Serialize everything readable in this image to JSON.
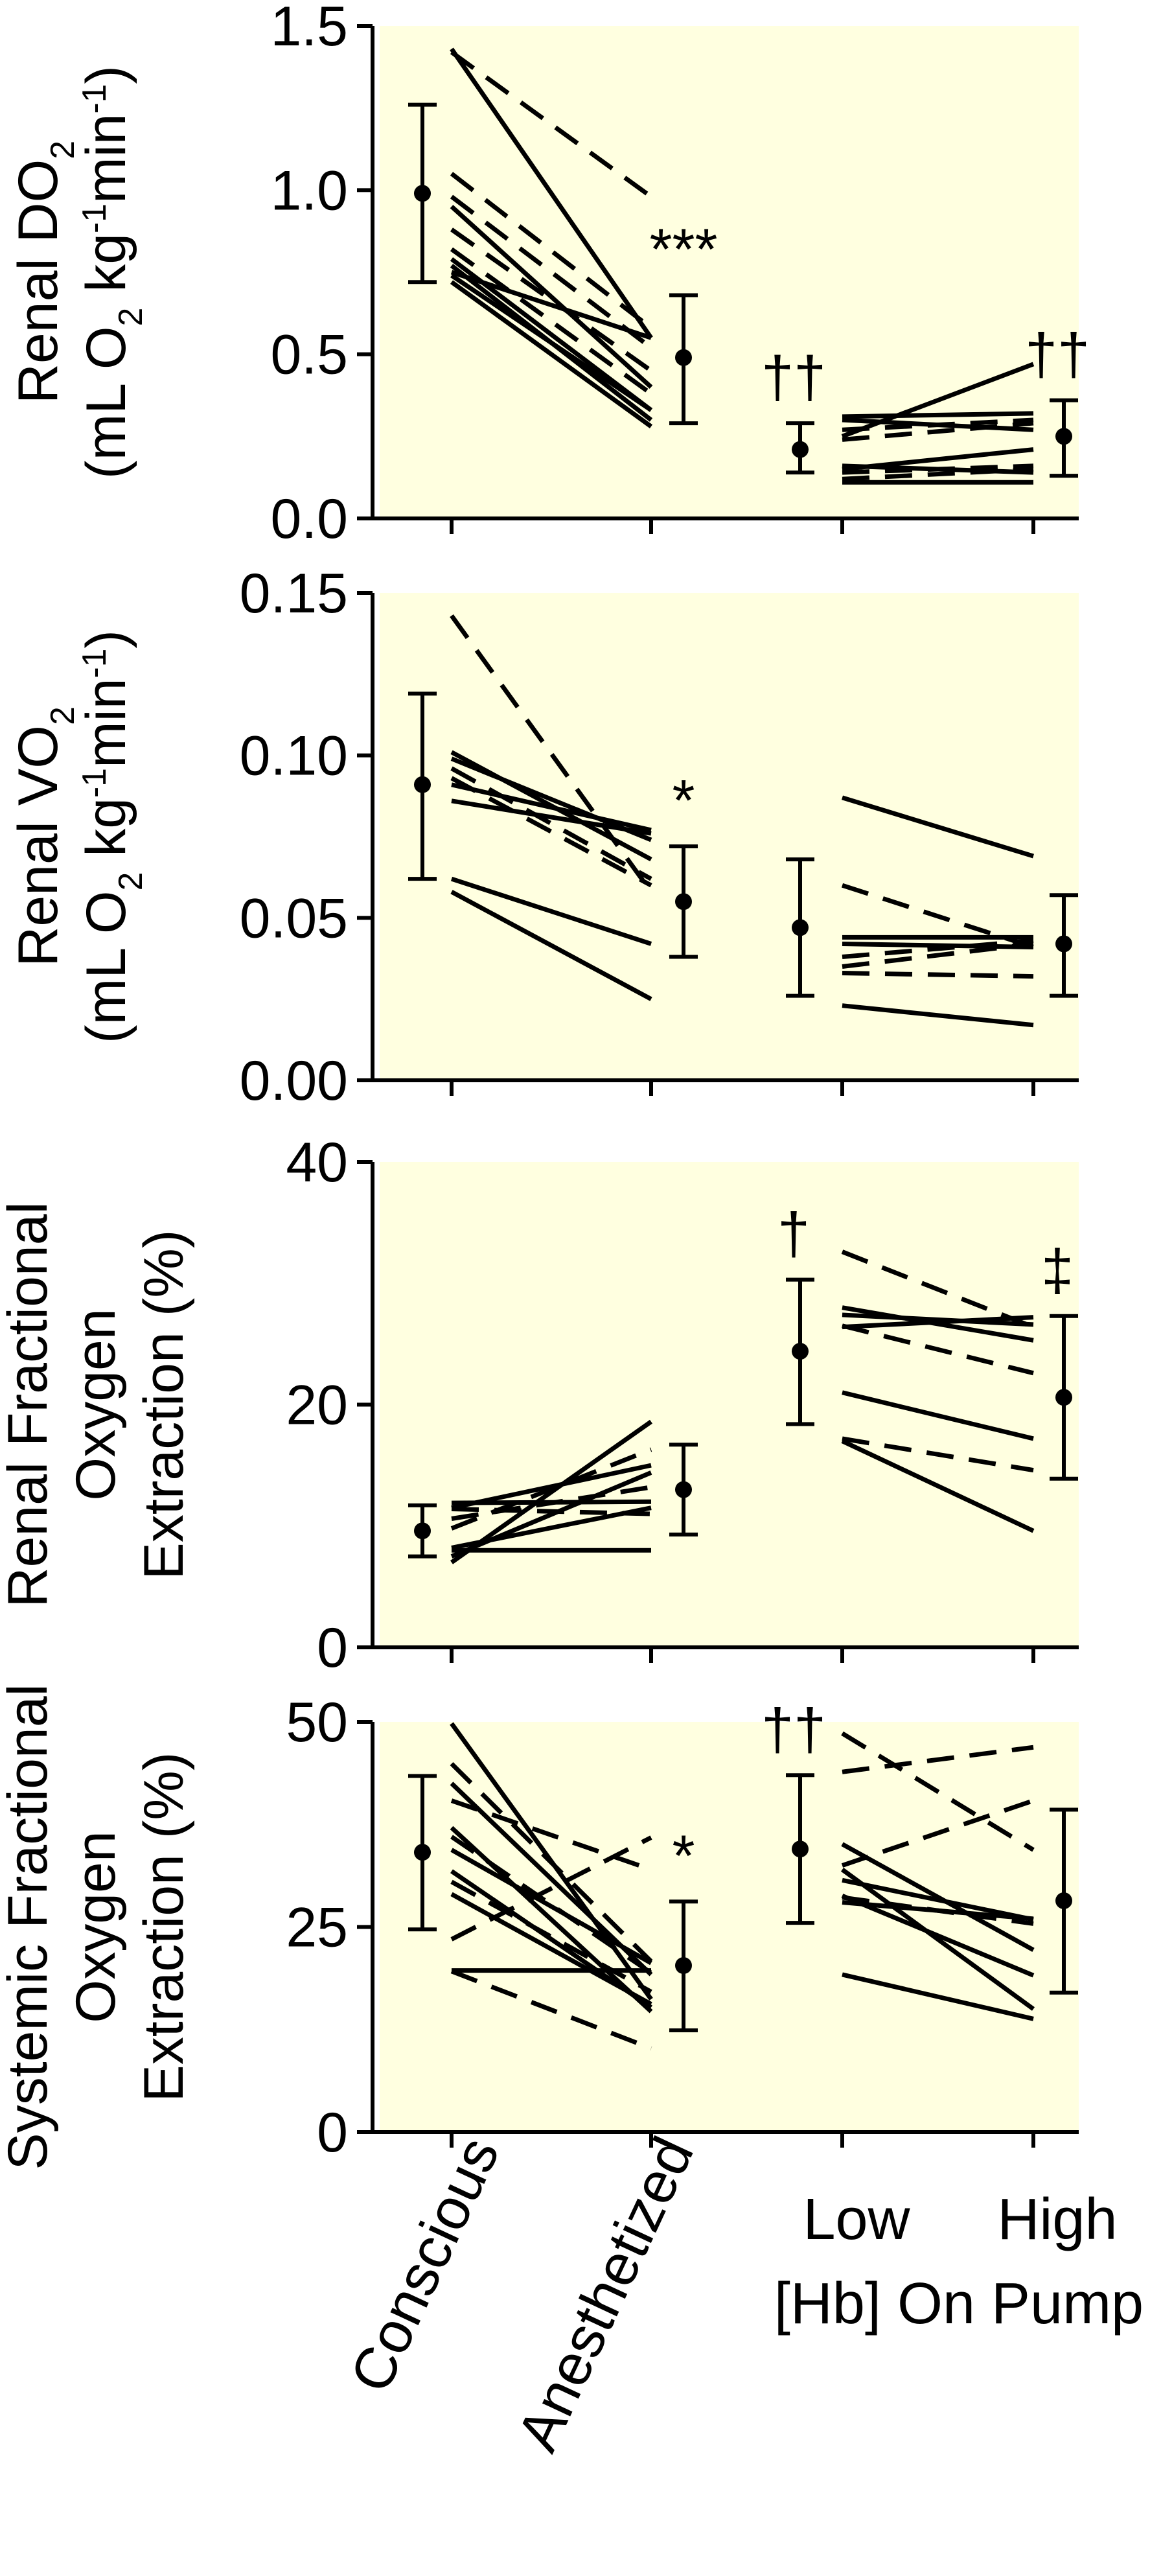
{
  "figure": {
    "colors": {
      "panel_background": "#ffffe0",
      "ink": "#000000"
    },
    "x_categories": [
      "Conscious",
      "Anesthetized",
      "Low",
      "High"
    ],
    "bottom_group_label": "[Hb] On Pump"
  },
  "chart_data": [
    {
      "type": "line",
      "panel": "renal-do2",
      "ylabel": [
        "Renal DO2",
        "(mL O2 kg-1min-1)"
      ],
      "ylim": [
        0,
        1.5
      ],
      "yticks": [
        "0.0",
        "0.5",
        "1.0",
        "1.5"
      ],
      "grid": false,
      "individual_lines": [
        {
          "style": "solid",
          "x": [
            0,
            1
          ],
          "y": [
            1.43,
            0.55
          ]
        },
        {
          "style": "dashed",
          "x": [
            0,
            1
          ],
          "y": [
            1.42,
            0.98
          ]
        },
        {
          "style": "dashed",
          "x": [
            0,
            1
          ],
          "y": [
            1.05,
            0.58
          ]
        },
        {
          "style": "dashed",
          "x": [
            0,
            1
          ],
          "y": [
            0.98,
            0.52
          ]
        },
        {
          "style": "solid",
          "x": [
            0,
            1
          ],
          "y": [
            0.95,
            0.4
          ]
        },
        {
          "style": "dashed",
          "x": [
            0,
            1
          ],
          "y": [
            0.88,
            0.45
          ]
        },
        {
          "style": "dashed",
          "x": [
            0,
            1
          ],
          "y": [
            0.82,
            0.38
          ]
        },
        {
          "style": "solid",
          "x": [
            0,
            1
          ],
          "y": [
            0.79,
            0.33
          ]
        },
        {
          "style": "solid",
          "x": [
            0,
            1
          ],
          "y": [
            0.77,
            0.3
          ]
        },
        {
          "style": "solid",
          "x": [
            0,
            1
          ],
          "y": [
            0.75,
            0.55
          ]
        },
        {
          "style": "solid",
          "x": [
            0,
            1
          ],
          "y": [
            0.74,
            0.33
          ]
        },
        {
          "style": "solid",
          "x": [
            0,
            1
          ],
          "y": [
            0.72,
            0.28
          ]
        },
        {
          "style": "solid",
          "x": [
            2,
            3
          ],
          "y": [
            0.25,
            0.47
          ]
        },
        {
          "style": "solid",
          "x": [
            2,
            3
          ],
          "y": [
            0.31,
            0.32
          ]
        },
        {
          "style": "dashed",
          "x": [
            2,
            3
          ],
          "y": [
            0.27,
            0.3
          ]
        },
        {
          "style": "dashed",
          "x": [
            2,
            3
          ],
          "y": [
            0.24,
            0.29
          ]
        },
        {
          "style": "solid",
          "x": [
            2,
            3
          ],
          "y": [
            0.3,
            0.27
          ]
        },
        {
          "style": "solid",
          "x": [
            2,
            3
          ],
          "y": [
            0.15,
            0.21
          ]
        },
        {
          "style": "dashed",
          "x": [
            2,
            3
          ],
          "y": [
            0.14,
            0.16
          ]
        },
        {
          "style": "solid",
          "x": [
            2,
            3
          ],
          "y": [
            0.16,
            0.14
          ]
        },
        {
          "style": "dashed",
          "x": [
            2,
            3
          ],
          "y": [
            0.12,
            0.15
          ]
        },
        {
          "style": "solid",
          "x": [
            2,
            3
          ],
          "y": [
            0.11,
            0.11
          ]
        }
      ],
      "means": [
        {
          "x": 0,
          "mean": 0.99,
          "low": 0.72,
          "high": 1.26,
          "label": ""
        },
        {
          "x": 1,
          "mean": 0.49,
          "low": 0.29,
          "high": 0.68,
          "label": "***"
        },
        {
          "x": 2,
          "mean": 0.21,
          "low": 0.14,
          "high": 0.29,
          "label": "††"
        },
        {
          "x": 3,
          "mean": 0.25,
          "low": 0.13,
          "high": 0.36,
          "label": "††"
        }
      ]
    },
    {
      "type": "line",
      "panel": "renal-vo2",
      "ylabel": [
        "Renal VO2",
        "(mL O2 kg-1min-1)"
      ],
      "ylim": [
        0,
        0.15
      ],
      "yticks": [
        "0.00",
        "0.05",
        "0.10",
        "0.15"
      ],
      "grid": false,
      "individual_lines": [
        {
          "style": "dashed",
          "x": [
            0,
            1
          ],
          "y": [
            0.143,
            0.058
          ]
        },
        {
          "style": "solid",
          "x": [
            0,
            1
          ],
          "y": [
            0.101,
            0.068
          ]
        },
        {
          "style": "solid",
          "x": [
            0,
            1
          ],
          "y": [
            0.099,
            0.074
          ]
        },
        {
          "style": "dashed",
          "x": [
            0,
            1
          ],
          "y": [
            0.096,
            0.062
          ]
        },
        {
          "style": "dashed",
          "x": [
            0,
            1
          ],
          "y": [
            0.093,
            0.06
          ]
        },
        {
          "style": "solid",
          "x": [
            0,
            1
          ],
          "y": [
            0.091,
            0.077
          ]
        },
        {
          "style": "solid",
          "x": [
            0,
            1
          ],
          "y": [
            0.086,
            0.076
          ]
        },
        {
          "style": "solid",
          "x": [
            0,
            1
          ],
          "y": [
            0.062,
            0.042
          ]
        },
        {
          "style": "solid",
          "x": [
            0,
            1
          ],
          "y": [
            0.058,
            0.025
          ]
        },
        {
          "style": "solid",
          "x": [
            2,
            3
          ],
          "y": [
            0.087,
            0.069
          ]
        },
        {
          "style": "dashed",
          "x": [
            2,
            3
          ],
          "y": [
            0.06,
            0.041
          ]
        },
        {
          "style": "solid",
          "x": [
            2,
            3
          ],
          "y": [
            0.044,
            0.044
          ]
        },
        {
          "style": "solid",
          "x": [
            2,
            3
          ],
          "y": [
            0.042,
            0.041
          ]
        },
        {
          "style": "dashed",
          "x": [
            2,
            3
          ],
          "y": [
            0.038,
            0.043
          ]
        },
        {
          "style": "dashed",
          "x": [
            2,
            3
          ],
          "y": [
            0.035,
            0.042
          ]
        },
        {
          "style": "dashed",
          "x": [
            2,
            3
          ],
          "y": [
            0.033,
            0.032
          ]
        },
        {
          "style": "solid",
          "x": [
            2,
            3
          ],
          "y": [
            0.023,
            0.017
          ]
        }
      ],
      "means": [
        {
          "x": 0,
          "mean": 0.091,
          "low": 0.062,
          "high": 0.119,
          "label": ""
        },
        {
          "x": 1,
          "mean": 0.055,
          "low": 0.038,
          "high": 0.072,
          "label": "*"
        },
        {
          "x": 2,
          "mean": 0.047,
          "low": 0.026,
          "high": 0.068,
          "label": ""
        },
        {
          "x": 3,
          "mean": 0.042,
          "low": 0.026,
          "high": 0.057,
          "label": ""
        }
      ]
    },
    {
      "type": "line",
      "panel": "renal-foe",
      "ylabel": [
        "Renal Fractional",
        "Oxygen",
        "Extraction (%)"
      ],
      "ylim": [
        0,
        40
      ],
      "yticks": [
        "0",
        "20",
        "40"
      ],
      "grid": false,
      "individual_lines": [
        {
          "style": "solid",
          "x": [
            0,
            1
          ],
          "y": [
            7.0,
            18.6
          ]
        },
        {
          "style": "dashed",
          "x": [
            0,
            1
          ],
          "y": [
            9.8,
            16.3
          ]
        },
        {
          "style": "solid",
          "x": [
            0,
            1
          ],
          "y": [
            11.5,
            15.0
          ]
        },
        {
          "style": "solid",
          "x": [
            0,
            1
          ],
          "y": [
            7.5,
            14.4
          ]
        },
        {
          "style": "dashed",
          "x": [
            0,
            1
          ],
          "y": [
            10.6,
            13.2
          ]
        },
        {
          "style": "solid",
          "x": [
            0,
            1
          ],
          "y": [
            11.9,
            12.0
          ]
        },
        {
          "style": "dashed",
          "x": [
            0,
            1
          ],
          "y": [
            11.4,
            11.0
          ]
        },
        {
          "style": "solid",
          "x": [
            0,
            1
          ],
          "y": [
            8.2,
            11.5
          ]
        },
        {
          "style": "solid",
          "x": [
            0,
            1
          ],
          "y": [
            8.0,
            8.0
          ]
        },
        {
          "style": "dashed",
          "x": [
            2,
            3
          ],
          "y": [
            32.6,
            26.4
          ]
        },
        {
          "style": "solid",
          "x": [
            2,
            3
          ],
          "y": [
            28.0,
            25.3
          ]
        },
        {
          "style": "solid",
          "x": [
            2,
            3
          ],
          "y": [
            27.4,
            26.6
          ]
        },
        {
          "style": "dashed",
          "x": [
            2,
            3
          ],
          "y": [
            26.5,
            22.6
          ]
        },
        {
          "style": "solid",
          "x": [
            2,
            3
          ],
          "y": [
            26.4,
            27.2
          ]
        },
        {
          "style": "solid",
          "x": [
            2,
            3
          ],
          "y": [
            21.0,
            17.2
          ]
        },
        {
          "style": "dashed",
          "x": [
            2,
            3
          ],
          "y": [
            17.2,
            14.6
          ]
        },
        {
          "style": "solid",
          "x": [
            2,
            3
          ],
          "y": [
            17.0,
            9.6
          ]
        }
      ],
      "means": [
        {
          "x": 0,
          "mean": 9.6,
          "low": 7.5,
          "high": 11.7,
          "label": ""
        },
        {
          "x": 1,
          "mean": 13.0,
          "low": 9.3,
          "high": 16.7,
          "label": ""
        },
        {
          "x": 2,
          "mean": 24.4,
          "low": 18.4,
          "high": 30.3,
          "label": "†"
        },
        {
          "x": 3,
          "mean": 20.6,
          "low": 13.9,
          "high": 27.3,
          "label": "‡"
        }
      ]
    },
    {
      "type": "line",
      "panel": "systemic-foe",
      "ylabel": [
        "Systemic Fractional",
        "Oxygen",
        "Extraction (%)"
      ],
      "ylim": [
        0,
        50
      ],
      "yticks": [
        "0",
        "25",
        "50"
      ],
      "grid": false,
      "individual_lines": [
        {
          "style": "solid",
          "x": [
            0,
            1
          ],
          "y": [
            49.8,
            16.2
          ]
        },
        {
          "style": "dashed",
          "x": [
            0,
            1
          ],
          "y": [
            44.9,
            20.8
          ]
        },
        {
          "style": "solid",
          "x": [
            0,
            1
          ],
          "y": [
            42.5,
            19.2
          ]
        },
        {
          "style": "dashed",
          "x": [
            0,
            1
          ],
          "y": [
            40.4,
            32.0
          ]
        },
        {
          "style": "solid",
          "x": [
            0,
            1
          ],
          "y": [
            37.1,
            14.7
          ]
        },
        {
          "style": "dashed",
          "x": [
            0,
            1
          ],
          "y": [
            36.0,
            19.4
          ]
        },
        {
          "style": "solid",
          "x": [
            0,
            1
          ],
          "y": [
            34.4,
            20.6
          ]
        },
        {
          "style": "solid",
          "x": [
            0,
            1
          ],
          "y": [
            31.8,
            15.2
          ]
        },
        {
          "style": "dashed",
          "x": [
            0,
            1
          ],
          "y": [
            30.5,
            17.1
          ]
        },
        {
          "style": "solid",
          "x": [
            0,
            1
          ],
          "y": [
            29.0,
            15.6
          ]
        },
        {
          "style": "dashed",
          "x": [
            0,
            1
          ],
          "y": [
            23.5,
            35.9
          ]
        },
        {
          "style": "solid",
          "x": [
            0,
            1
          ],
          "y": [
            19.7,
            19.7
          ]
        },
        {
          "style": "dashed",
          "x": [
            0,
            1
          ],
          "y": [
            19.6,
            10.2
          ]
        },
        {
          "style": "dashed",
          "x": [
            2,
            3
          ],
          "y": [
            48.6,
            34.4
          ]
        },
        {
          "style": "dashed",
          "x": [
            2,
            3
          ],
          "y": [
            43.9,
            46.9
          ]
        },
        {
          "style": "dashed",
          "x": [
            2,
            3
          ],
          "y": [
            32.5,
            40.4
          ]
        },
        {
          "style": "solid",
          "x": [
            2,
            3
          ],
          "y": [
            35.1,
            22.2
          ]
        },
        {
          "style": "solid",
          "x": [
            2,
            3
          ],
          "y": [
            32.0,
            15.0
          ]
        },
        {
          "style": "solid",
          "x": [
            2,
            3
          ],
          "y": [
            30.7,
            25.9
          ]
        },
        {
          "style": "solid",
          "x": [
            2,
            3
          ],
          "y": [
            28.8,
            19.1
          ]
        },
        {
          "style": "solid",
          "x": [
            2,
            3
          ],
          "y": [
            28.0,
            26.0
          ]
        },
        {
          "style": "dashed",
          "x": [
            2,
            3
          ],
          "y": [
            28.6,
            25.4
          ]
        },
        {
          "style": "solid",
          "x": [
            2,
            3
          ],
          "y": [
            19.2,
            13.8
          ]
        }
      ],
      "means": [
        {
          "x": 0,
          "mean": 34.1,
          "low": 24.7,
          "high": 43.4,
          "label": ""
        },
        {
          "x": 1,
          "mean": 20.3,
          "low": 12.4,
          "high": 28.1,
          "label": "*"
        },
        {
          "x": 2,
          "mean": 34.5,
          "low": 25.5,
          "high": 43.5,
          "label": "††"
        },
        {
          "x": 3,
          "mean": 28.2,
          "low": 17.0,
          "high": 39.3,
          "label": ""
        }
      ]
    }
  ]
}
